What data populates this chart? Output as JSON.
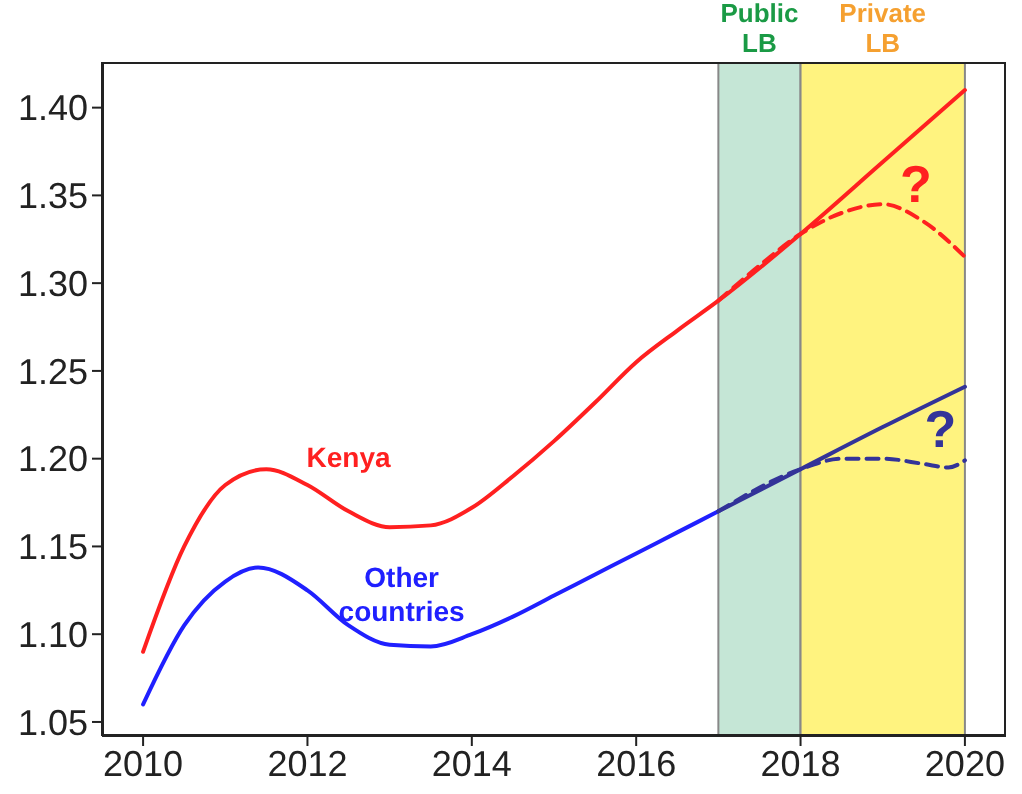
{
  "chart_data": {
    "type": "line",
    "xlim": [
      2009.5,
      2020.5
    ],
    "xticks": [
      2010,
      2012,
      2014,
      2016,
      2018,
      2020
    ],
    "ylim": [
      1.042,
      1.426
    ],
    "yticks": [
      1.05,
      {
        "value": 1.1,
        "label": "1.10"
      },
      1.15,
      {
        "value": 1.2,
        "label": "1.20"
      },
      1.25,
      {
        "value": 1.3,
        "label": "1.30"
      },
      1.35,
      {
        "value": 1.4,
        "label": "1.40"
      }
    ],
    "marker": "none",
    "series": [
      {
        "name": "Kenya",
        "color": "#ff2020",
        "line_style": "solid",
        "x": [
          2010,
          2010.5,
          2011,
          2011.5,
          2012,
          2012.5,
          2013,
          2013.5,
          2014,
          2014.5,
          2015,
          2015.5,
          2016,
          2016.5,
          2017,
          2018,
          2019,
          2020
        ],
        "values": [
          1.09,
          1.15,
          1.185,
          1.194,
          1.185,
          1.17,
          1.161,
          1.162,
          1.172,
          1.19,
          1.21,
          1.232,
          1.255,
          1.273,
          1.29,
          1.328,
          1.369,
          1.41
        ]
      },
      {
        "color": "#ff2020",
        "line_style": "dashed",
        "x": [
          2017,
          2017.5,
          2018,
          2018.5,
          2019,
          2019.5,
          2020
        ],
        "values": [
          1.29,
          1.31,
          1.328,
          1.34,
          1.345,
          1.335,
          1.315
        ]
      },
      {
        "name": "Other countries",
        "color": "#2020ff",
        "line_style": "solid",
        "x": [
          2010,
          2010.5,
          2011,
          2011.4,
          2012,
          2012.5,
          2013,
          2013.5,
          2014,
          2014.5,
          2015,
          2015.5,
          2016,
          2016.5,
          2017
        ],
        "values": [
          1.06,
          1.105,
          1.13,
          1.138,
          1.125,
          1.105,
          1.094,
          1.093,
          1.1,
          1.11,
          1.122,
          1.134,
          1.146,
          1.158,
          1.17
        ]
      },
      {
        "color": "#333399",
        "line_style": "solid",
        "x": [
          2017,
          2018,
          2019,
          2020
        ],
        "values": [
          1.17,
          1.194,
          1.218,
          1.241
        ]
      },
      {
        "color": "#333399",
        "line_style": "dashed",
        "x": [
          2017,
          2018,
          2018.5,
          2019,
          2019.5,
          2019.8,
          2020
        ],
        "values": [
          1.17,
          1.194,
          1.2,
          1.2,
          1.197,
          1.195,
          1.199
        ]
      }
    ],
    "bands": [
      {
        "axis": "x",
        "from": 2017,
        "to": 2018,
        "label": "Public LB",
        "color": "#c5e6d6"
      },
      {
        "axis": "x",
        "from": 2018,
        "to": 2020,
        "label": "Private LB",
        "color": "#fff37f"
      }
    ],
    "annotations": [
      "?",
      "?"
    ]
  }
}
